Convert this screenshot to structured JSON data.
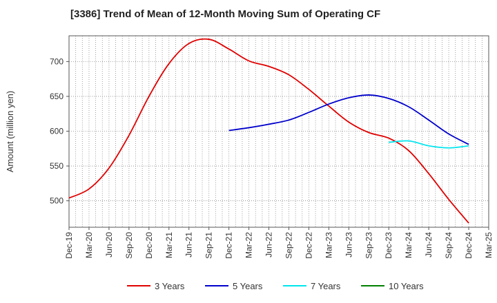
{
  "chart_data": {
    "type": "line",
    "title": "[3386]  Trend of Mean of 12-Month Moving Sum of Operating CF",
    "xlabel": "",
    "ylabel": "Amount (million yen)",
    "ylim": [
      462,
      737
    ],
    "y_ticks": [
      500,
      550,
      600,
      650,
      700
    ],
    "x_tick_labels": [
      "Dec-19",
      "Mar-20",
      "Jun-20",
      "Sep-20",
      "Dec-20",
      "Mar-21",
      "Jun-21",
      "Sep-21",
      "Dec-21",
      "Mar-22",
      "Jun-22",
      "Sep-22",
      "Dec-22",
      "Mar-23",
      "Jun-23",
      "Sep-23",
      "Dec-23",
      "Mar-24",
      "Jun-24",
      "Sep-24",
      "Dec-24",
      "Mar-25"
    ],
    "grid": true,
    "legend_position": "bottom",
    "series": [
      {
        "name": "3 Years",
        "color": "#e00000",
        "points": [
          [
            "Dec-19",
            504
          ],
          [
            "Mar-20",
            517
          ],
          [
            "Jun-20",
            547
          ],
          [
            "Sep-20",
            594
          ],
          [
            "Dec-20",
            650
          ],
          [
            "Mar-21",
            697
          ],
          [
            "Jun-21",
            726
          ],
          [
            "Sep-21",
            732
          ],
          [
            "Dec-21",
            718
          ],
          [
            "Mar-22",
            701
          ],
          [
            "Jun-22",
            693
          ],
          [
            "Sep-22",
            681
          ],
          [
            "Dec-22",
            660
          ],
          [
            "Mar-23",
            636
          ],
          [
            "Jun-23",
            613
          ],
          [
            "Sep-23",
            598
          ],
          [
            "Dec-23",
            590
          ],
          [
            "Mar-24",
            572
          ],
          [
            "Jun-24",
            539
          ],
          [
            "Sep-24",
            502
          ],
          [
            "Dec-24",
            468
          ]
        ]
      },
      {
        "name": "5 Years",
        "color": "#0000cc",
        "points": [
          [
            "Dec-21",
            601
          ],
          [
            "Mar-22",
            605
          ],
          [
            "Jun-22",
            610
          ],
          [
            "Sep-22",
            616
          ],
          [
            "Dec-22",
            627
          ],
          [
            "Mar-23",
            639
          ],
          [
            "Jun-23",
            648
          ],
          [
            "Sep-23",
            652
          ],
          [
            "Dec-23",
            647
          ],
          [
            "Mar-24",
            635
          ],
          [
            "Jun-24",
            616
          ],
          [
            "Sep-24",
            596
          ],
          [
            "Dec-24",
            581
          ]
        ]
      },
      {
        "name": "7 Years",
        "color": "#00e5ee",
        "points": [
          [
            "Dec-23",
            584
          ],
          [
            "Mar-24",
            586
          ],
          [
            "Jun-24",
            579
          ],
          [
            "Sep-24",
            576
          ],
          [
            "Dec-24",
            579
          ]
        ]
      },
      {
        "name": "10 Years",
        "color": "#008000",
        "points": []
      }
    ]
  }
}
